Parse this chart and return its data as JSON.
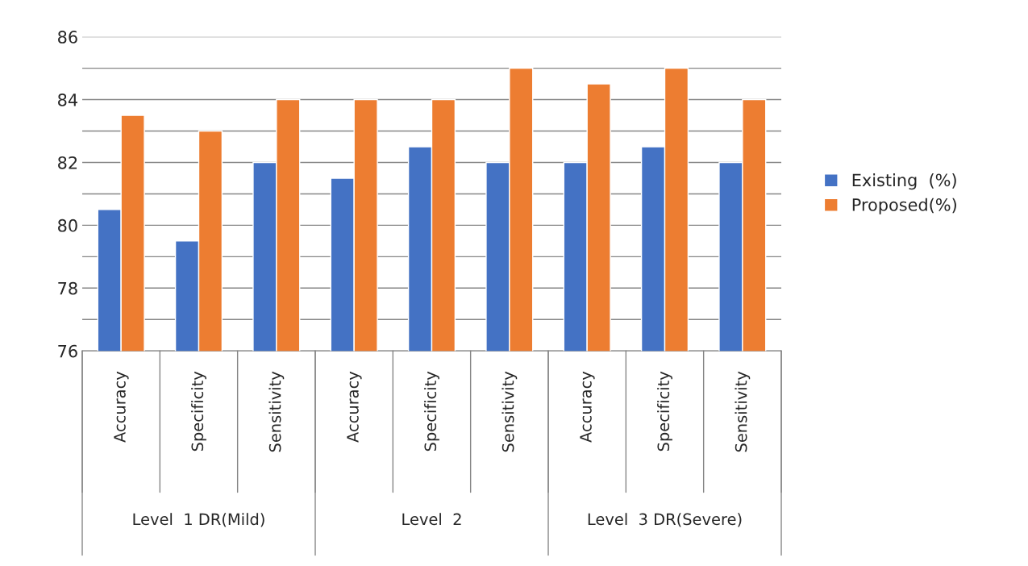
{
  "chart_data": {
    "type": "bar",
    "categories": [
      "Accuracy",
      "Specificity",
      "Sensitivity",
      "Accuracy",
      "Specificity",
      "Sensitivity",
      "Accuracy",
      "Specificity",
      "Sensitivity"
    ],
    "series": [
      {
        "name": "Existing  (%)",
        "color": "#4472c4",
        "values": [
          80.5,
          79.5,
          82,
          81.5,
          82.5,
          82,
          82,
          82.5,
          82
        ]
      },
      {
        "name": "Proposed(%)",
        "color": "#ed7d31",
        "values": [
          83.5,
          83,
          84,
          84,
          84,
          85,
          84.5,
          85,
          84
        ]
      }
    ],
    "annotations": [
      "Level  1 DR(Mild)",
      "Level  2",
      "Level  3 DR(Severe)"
    ],
    "ylim": [
      76,
      86
    ],
    "yticks": [
      76,
      {
        "value": 77,
        "label": null
      },
      78,
      {
        "value": 79,
        "label": null
      },
      80,
      {
        "value": 81,
        "label": null
      },
      82,
      {
        "value": 83,
        "label": null
      },
      84,
      {
        "value": 85,
        "label": null
      },
      86
    ],
    "grid": "y",
    "legend": "right"
  }
}
